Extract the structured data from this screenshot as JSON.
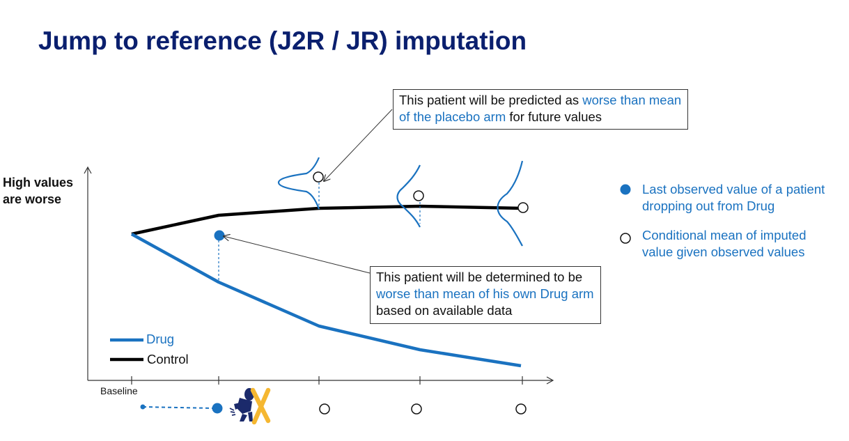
{
  "title": "Jump to reference (J2R / JR) imputation",
  "y_axis_label_line1": "High values",
  "y_axis_label_line2": "are worse",
  "callout_top": {
    "text1": "This patient will be predicted as ",
    "highlight1": "worse than mean of the placebo arm",
    "text2": " for future values"
  },
  "callout_mid": {
    "text1": "This patient will be determined to be ",
    "highlight1": "worse than mean of his own Drug arm",
    "text2": " based on available data"
  },
  "legend_right": {
    "filled_label": "Last observed value of a patient dropping out from Drug",
    "open_label": "Conditional mean of imputed value given observed values"
  },
  "legend_series": {
    "drug_label": "Drug",
    "control_label": "Control"
  },
  "x_tick_label": "Baseline",
  "colors": {
    "title": "#0a1f6e",
    "drug": "#1a72c0",
    "control": "#000000",
    "dropout_marker": "#f5b731",
    "patient_icon": "#1b2a6b"
  }
}
